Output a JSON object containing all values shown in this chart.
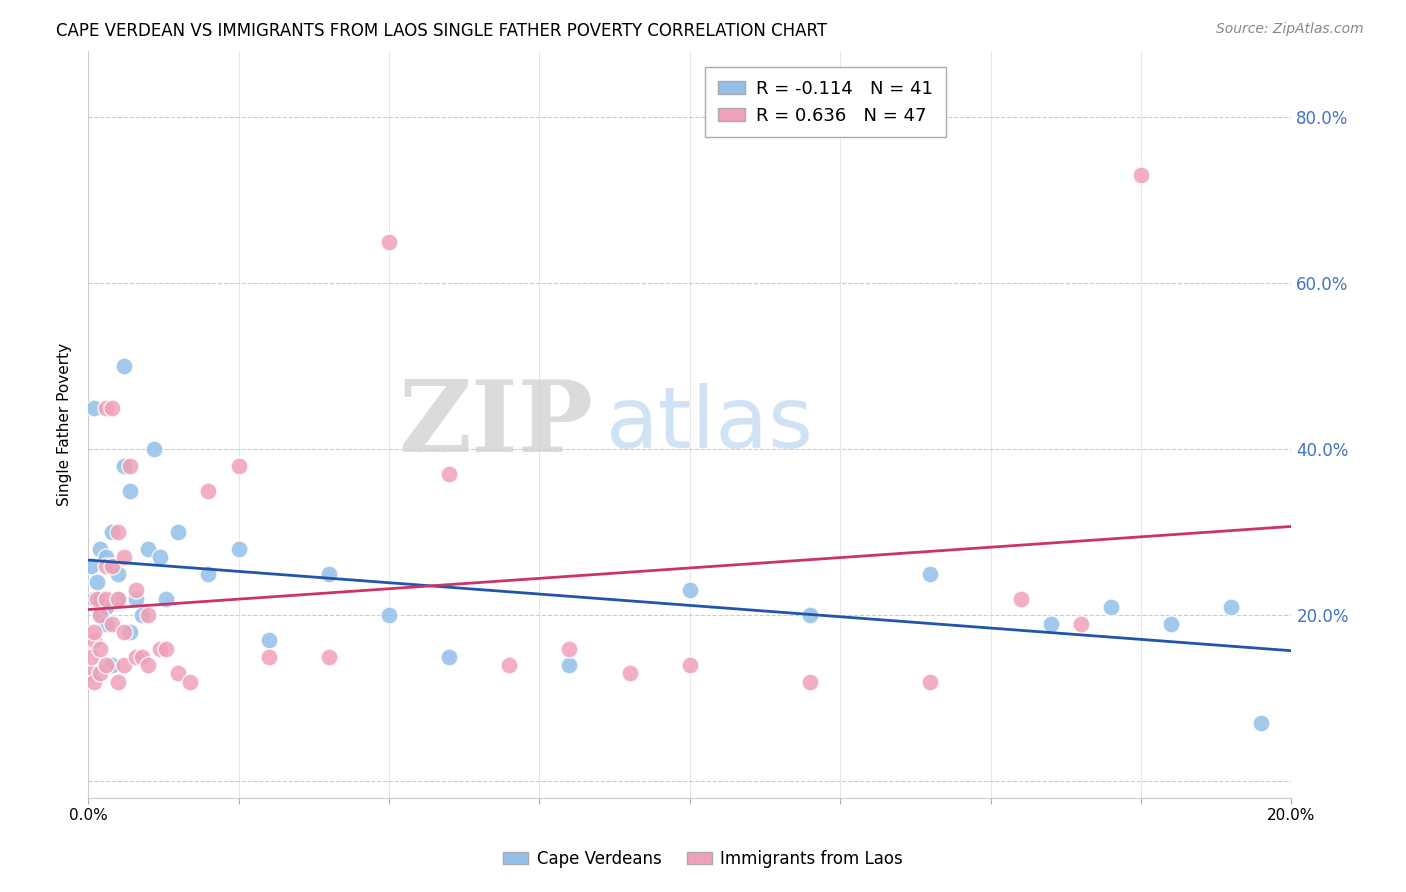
{
  "title": "CAPE VERDEAN VS IMMIGRANTS FROM LAOS SINGLE FATHER POVERTY CORRELATION CHART",
  "source": "Source: ZipAtlas.com",
  "ylabel": "Single Father Poverty",
  "r_blue": -0.114,
  "n_blue": 41,
  "r_pink": 0.636,
  "n_pink": 47,
  "blue_color": "#92c0e8",
  "pink_color": "#f0a0b8",
  "blue_line_color": "#2255aa",
  "pink_line_color": "#cc3366",
  "right_axis_color": "#4472c4",
  "legend_label_blue": "Cape Verdeans",
  "legend_label_pink": "Immigrants from Laos",
  "xlim": [
    0,
    0.2
  ],
  "ylim": [
    -0.02,
    0.88
  ],
  "blue_trend": [
    0.235,
    -0.9
  ],
  "pink_trend": [
    0.06,
    4.1
  ],
  "blue_x": [
    0.0005,
    0.001,
    0.001,
    0.0015,
    0.002,
    0.002,
    0.002,
    0.003,
    0.003,
    0.003,
    0.004,
    0.004,
    0.004,
    0.005,
    0.005,
    0.006,
    0.006,
    0.007,
    0.007,
    0.008,
    0.009,
    0.01,
    0.011,
    0.012,
    0.013,
    0.015,
    0.02,
    0.025,
    0.03,
    0.04,
    0.05,
    0.06,
    0.08,
    0.1,
    0.12,
    0.14,
    0.16,
    0.17,
    0.18,
    0.19,
    0.195
  ],
  "blue_y": [
    0.26,
    0.45,
    0.22,
    0.24,
    0.28,
    0.2,
    0.22,
    0.21,
    0.19,
    0.27,
    0.3,
    0.26,
    0.14,
    0.25,
    0.22,
    0.38,
    0.5,
    0.35,
    0.18,
    0.22,
    0.2,
    0.28,
    0.4,
    0.27,
    0.22,
    0.3,
    0.25,
    0.28,
    0.17,
    0.25,
    0.2,
    0.15,
    0.14,
    0.23,
    0.2,
    0.25,
    0.19,
    0.21,
    0.19,
    0.21,
    0.07
  ],
  "pink_x": [
    0.0003,
    0.0005,
    0.001,
    0.001,
    0.001,
    0.0015,
    0.002,
    0.002,
    0.002,
    0.003,
    0.003,
    0.003,
    0.003,
    0.004,
    0.004,
    0.004,
    0.005,
    0.005,
    0.005,
    0.006,
    0.006,
    0.006,
    0.007,
    0.008,
    0.008,
    0.009,
    0.01,
    0.01,
    0.012,
    0.013,
    0.015,
    0.017,
    0.02,
    0.025,
    0.03,
    0.04,
    0.05,
    0.06,
    0.07,
    0.08,
    0.09,
    0.1,
    0.12,
    0.14,
    0.155,
    0.165,
    0.175
  ],
  "pink_y": [
    0.13,
    0.15,
    0.17,
    0.12,
    0.18,
    0.22,
    0.2,
    0.16,
    0.13,
    0.45,
    0.22,
    0.26,
    0.14,
    0.45,
    0.26,
    0.19,
    0.3,
    0.22,
    0.12,
    0.27,
    0.18,
    0.14,
    0.38,
    0.15,
    0.23,
    0.15,
    0.2,
    0.14,
    0.16,
    0.16,
    0.13,
    0.12,
    0.35,
    0.38,
    0.15,
    0.15,
    0.65,
    0.37,
    0.14,
    0.16,
    0.13,
    0.14,
    0.12,
    0.12,
    0.22,
    0.19,
    0.73
  ]
}
